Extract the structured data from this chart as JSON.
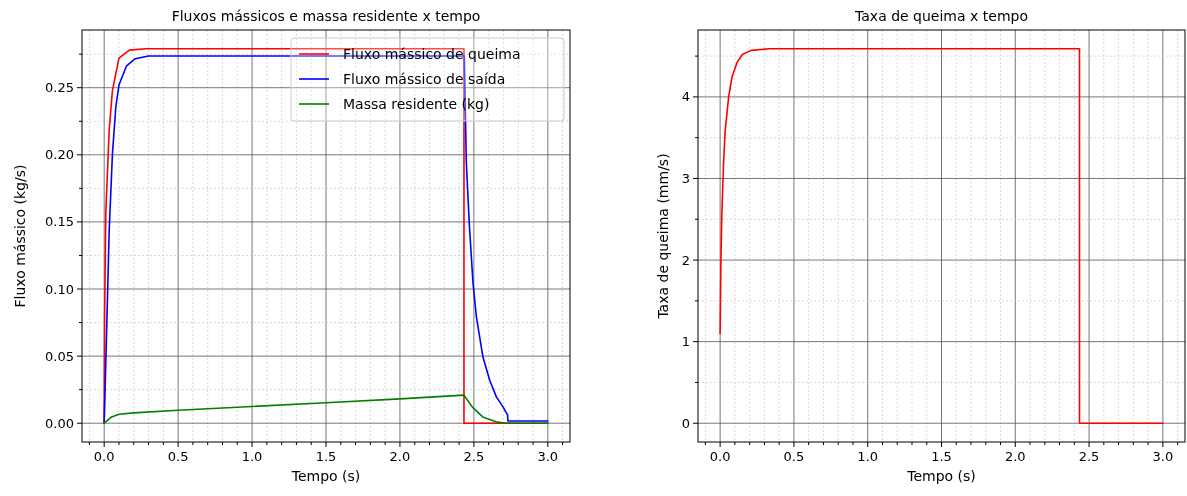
{
  "chart_data": [
    {
      "type": "line",
      "title": "Fluxos mássicos e massa residente x tempo",
      "xlabel": "Tempo (s)",
      "ylabel": "Fluxo mássico (kg/s)",
      "xlim": [
        -0.15,
        3.15
      ],
      "ylim": [
        -0.014,
        0.293
      ],
      "xticks": [
        {
          "value": -0.1,
          "label": null
        },
        {
          "value": 0,
          "label": "0.0"
        },
        {
          "value": 0.1,
          "label": null
        },
        {
          "value": 0.2,
          "label": null
        },
        {
          "value": 0.3,
          "label": null
        },
        {
          "value": 0.4,
          "label": null
        },
        {
          "value": 0.5,
          "label": "0.5"
        },
        {
          "value": 0.6,
          "label": null
        },
        {
          "value": 0.7,
          "label": null
        },
        {
          "value": 0.8,
          "label": null
        },
        {
          "value": 0.9,
          "label": null
        },
        {
          "value": 1,
          "label": "1.0"
        },
        {
          "value": 1.1,
          "label": null
        },
        {
          "value": 1.2,
          "label": null
        },
        {
          "value": 1.3,
          "label": null
        },
        {
          "value": 1.4,
          "label": null
        },
        {
          "value": 1.5,
          "label": "1.5"
        },
        {
          "value": 1.6,
          "label": null
        },
        {
          "value": 1.7,
          "label": null
        },
        {
          "value": 1.8,
          "label": null
        },
        {
          "value": 1.9,
          "label": null
        },
        {
          "value": 2,
          "label": "2.0"
        },
        {
          "value": 2.1,
          "label": null
        },
        {
          "value": 2.2,
          "label": null
        },
        {
          "value": 2.3,
          "label": null
        },
        {
          "value": 2.4,
          "label": null
        },
        {
          "value": 2.5,
          "label": "2.5"
        },
        {
          "value": 2.6,
          "label": null
        },
        {
          "value": 2.7,
          "label": null
        },
        {
          "value": 2.8,
          "label": null
        },
        {
          "value": 2.9,
          "label": null
        },
        {
          "value": 3,
          "label": "3.0"
        },
        {
          "value": 3.1,
          "label": null
        }
      ],
      "yticks": [
        {
          "value": 0,
          "label": "0.00"
        },
        {
          "value": 0.025,
          "label": null
        },
        {
          "value": 0.05,
          "label": "0.05"
        },
        {
          "value": 0.075,
          "label": null
        },
        {
          "value": 0.1,
          "label": "0.10"
        },
        {
          "value": 0.125,
          "label": null
        },
        {
          "value": 0.15,
          "label": "0.15"
        },
        {
          "value": 0.175,
          "label": null
        },
        {
          "value": 0.2,
          "label": "0.20"
        },
        {
          "value": 0.225,
          "label": null
        },
        {
          "value": 0.25,
          "label": "0.25"
        },
        {
          "value": 0.275,
          "label": null
        }
      ],
      "grid": true,
      "legend": "top right",
      "series": [
        {
          "name": "Fluxo mássico de queima",
          "color": "#ff0000",
          "x": [
            0,
            0.003,
            0.011,
            0.034,
            0.056,
            0.1,
            0.17,
            0.28,
            1,
            2.433,
            2.433,
            3
          ],
          "values": [
            0,
            0.08,
            0.157,
            0.219,
            0.248,
            0.272,
            0.278,
            0.279,
            0.279,
            0.279,
            0,
            0
          ]
        },
        {
          "name": "Fluxo mássico de saída",
          "color": "#0000ff",
          "x": [
            0,
            0.011,
            0.034,
            0.056,
            0.079,
            0.1,
            0.15,
            0.21,
            0.3,
            1,
            2.435,
            2.449,
            2.47,
            2.494,
            2.517,
            2.561,
            2.607,
            2.652,
            2.697,
            2.728,
            2.73,
            3
          ],
          "values": [
            0,
            0.045,
            0.144,
            0.201,
            0.236,
            0.252,
            0.266,
            0.2716,
            0.2736,
            0.2736,
            0.2736,
            0.194,
            0.1465,
            0.1045,
            0.0793,
            0.0495,
            0.032,
            0.0196,
            0.0122,
            0.006,
            0.0017,
            0.0017
          ]
        },
        {
          "name": "Massa residente (kg)",
          "color": "#008000",
          "x": [
            0,
            0.05,
            0.1,
            0.2,
            0.5,
            1,
            1.5,
            2,
            2.433,
            2.49,
            2.56,
            2.65,
            2.72,
            3
          ],
          "values": [
            0,
            0.0047,
            0.0067,
            0.0077,
            0.0097,
            0.0125,
            0.0153,
            0.0181,
            0.0209,
            0.012,
            0.0047,
            0.001,
            0,
            0
          ]
        }
      ]
    },
    {
      "type": "line",
      "title": "Taxa de queima x tempo",
      "xlabel": "Tempo (s)",
      "ylabel": "Taxa de queima (mm/s)",
      "xlim": [
        -0.15,
        3.15
      ],
      "ylim": [
        -0.23,
        4.82
      ],
      "xticks": [
        {
          "value": -0.1,
          "label": null
        },
        {
          "value": 0,
          "label": "0.0"
        },
        {
          "value": 0.1,
          "label": null
        },
        {
          "value": 0.2,
          "label": null
        },
        {
          "value": 0.3,
          "label": null
        },
        {
          "value": 0.4,
          "label": null
        },
        {
          "value": 0.5,
          "label": "0.5"
        },
        {
          "value": 0.6,
          "label": null
        },
        {
          "value": 0.7,
          "label": null
        },
        {
          "value": 0.8,
          "label": null
        },
        {
          "value": 0.9,
          "label": null
        },
        {
          "value": 1,
          "label": "1.0"
        },
        {
          "value": 1.1,
          "label": null
        },
        {
          "value": 1.2,
          "label": null
        },
        {
          "value": 1.3,
          "label": null
        },
        {
          "value": 1.4,
          "label": null
        },
        {
          "value": 1.5,
          "label": "1.5"
        },
        {
          "value": 1.6,
          "label": null
        },
        {
          "value": 1.7,
          "label": null
        },
        {
          "value": 1.8,
          "label": null
        },
        {
          "value": 1.9,
          "label": null
        },
        {
          "value": 2,
          "label": "2.0"
        },
        {
          "value": 2.1,
          "label": null
        },
        {
          "value": 2.2,
          "label": null
        },
        {
          "value": 2.3,
          "label": null
        },
        {
          "value": 2.4,
          "label": null
        },
        {
          "value": 2.5,
          "label": "2.5"
        },
        {
          "value": 2.6,
          "label": null
        },
        {
          "value": 2.7,
          "label": null
        },
        {
          "value": 2.8,
          "label": null
        },
        {
          "value": 2.9,
          "label": null
        },
        {
          "value": 3,
          "label": "3.0"
        },
        {
          "value": 3.1,
          "label": null
        }
      ],
      "yticks": [
        0,
        {
          "value": 0.5,
          "label": null
        },
        1,
        {
          "value": 1.5,
          "label": null
        },
        2,
        {
          "value": 2.5,
          "label": null
        },
        3,
        {
          "value": 3.5,
          "label": null
        },
        4,
        {
          "value": 4.5,
          "label": null
        }
      ],
      "grid": true,
      "series": [
        {
          "color": "#ff0000",
          "x": [
            0,
            0.005,
            0.011,
            0.023,
            0.034,
            0.057,
            0.08,
            0.114,
            0.15,
            0.21,
            0.33,
            1,
            2,
            2.435,
            2.435,
            3
          ],
          "values": [
            1.1,
            1.95,
            2.52,
            3.18,
            3.58,
            3.99,
            4.24,
            4.42,
            4.52,
            4.57,
            4.59,
            4.59,
            4.59,
            4.59,
            0,
            0
          ]
        }
      ]
    }
  ]
}
